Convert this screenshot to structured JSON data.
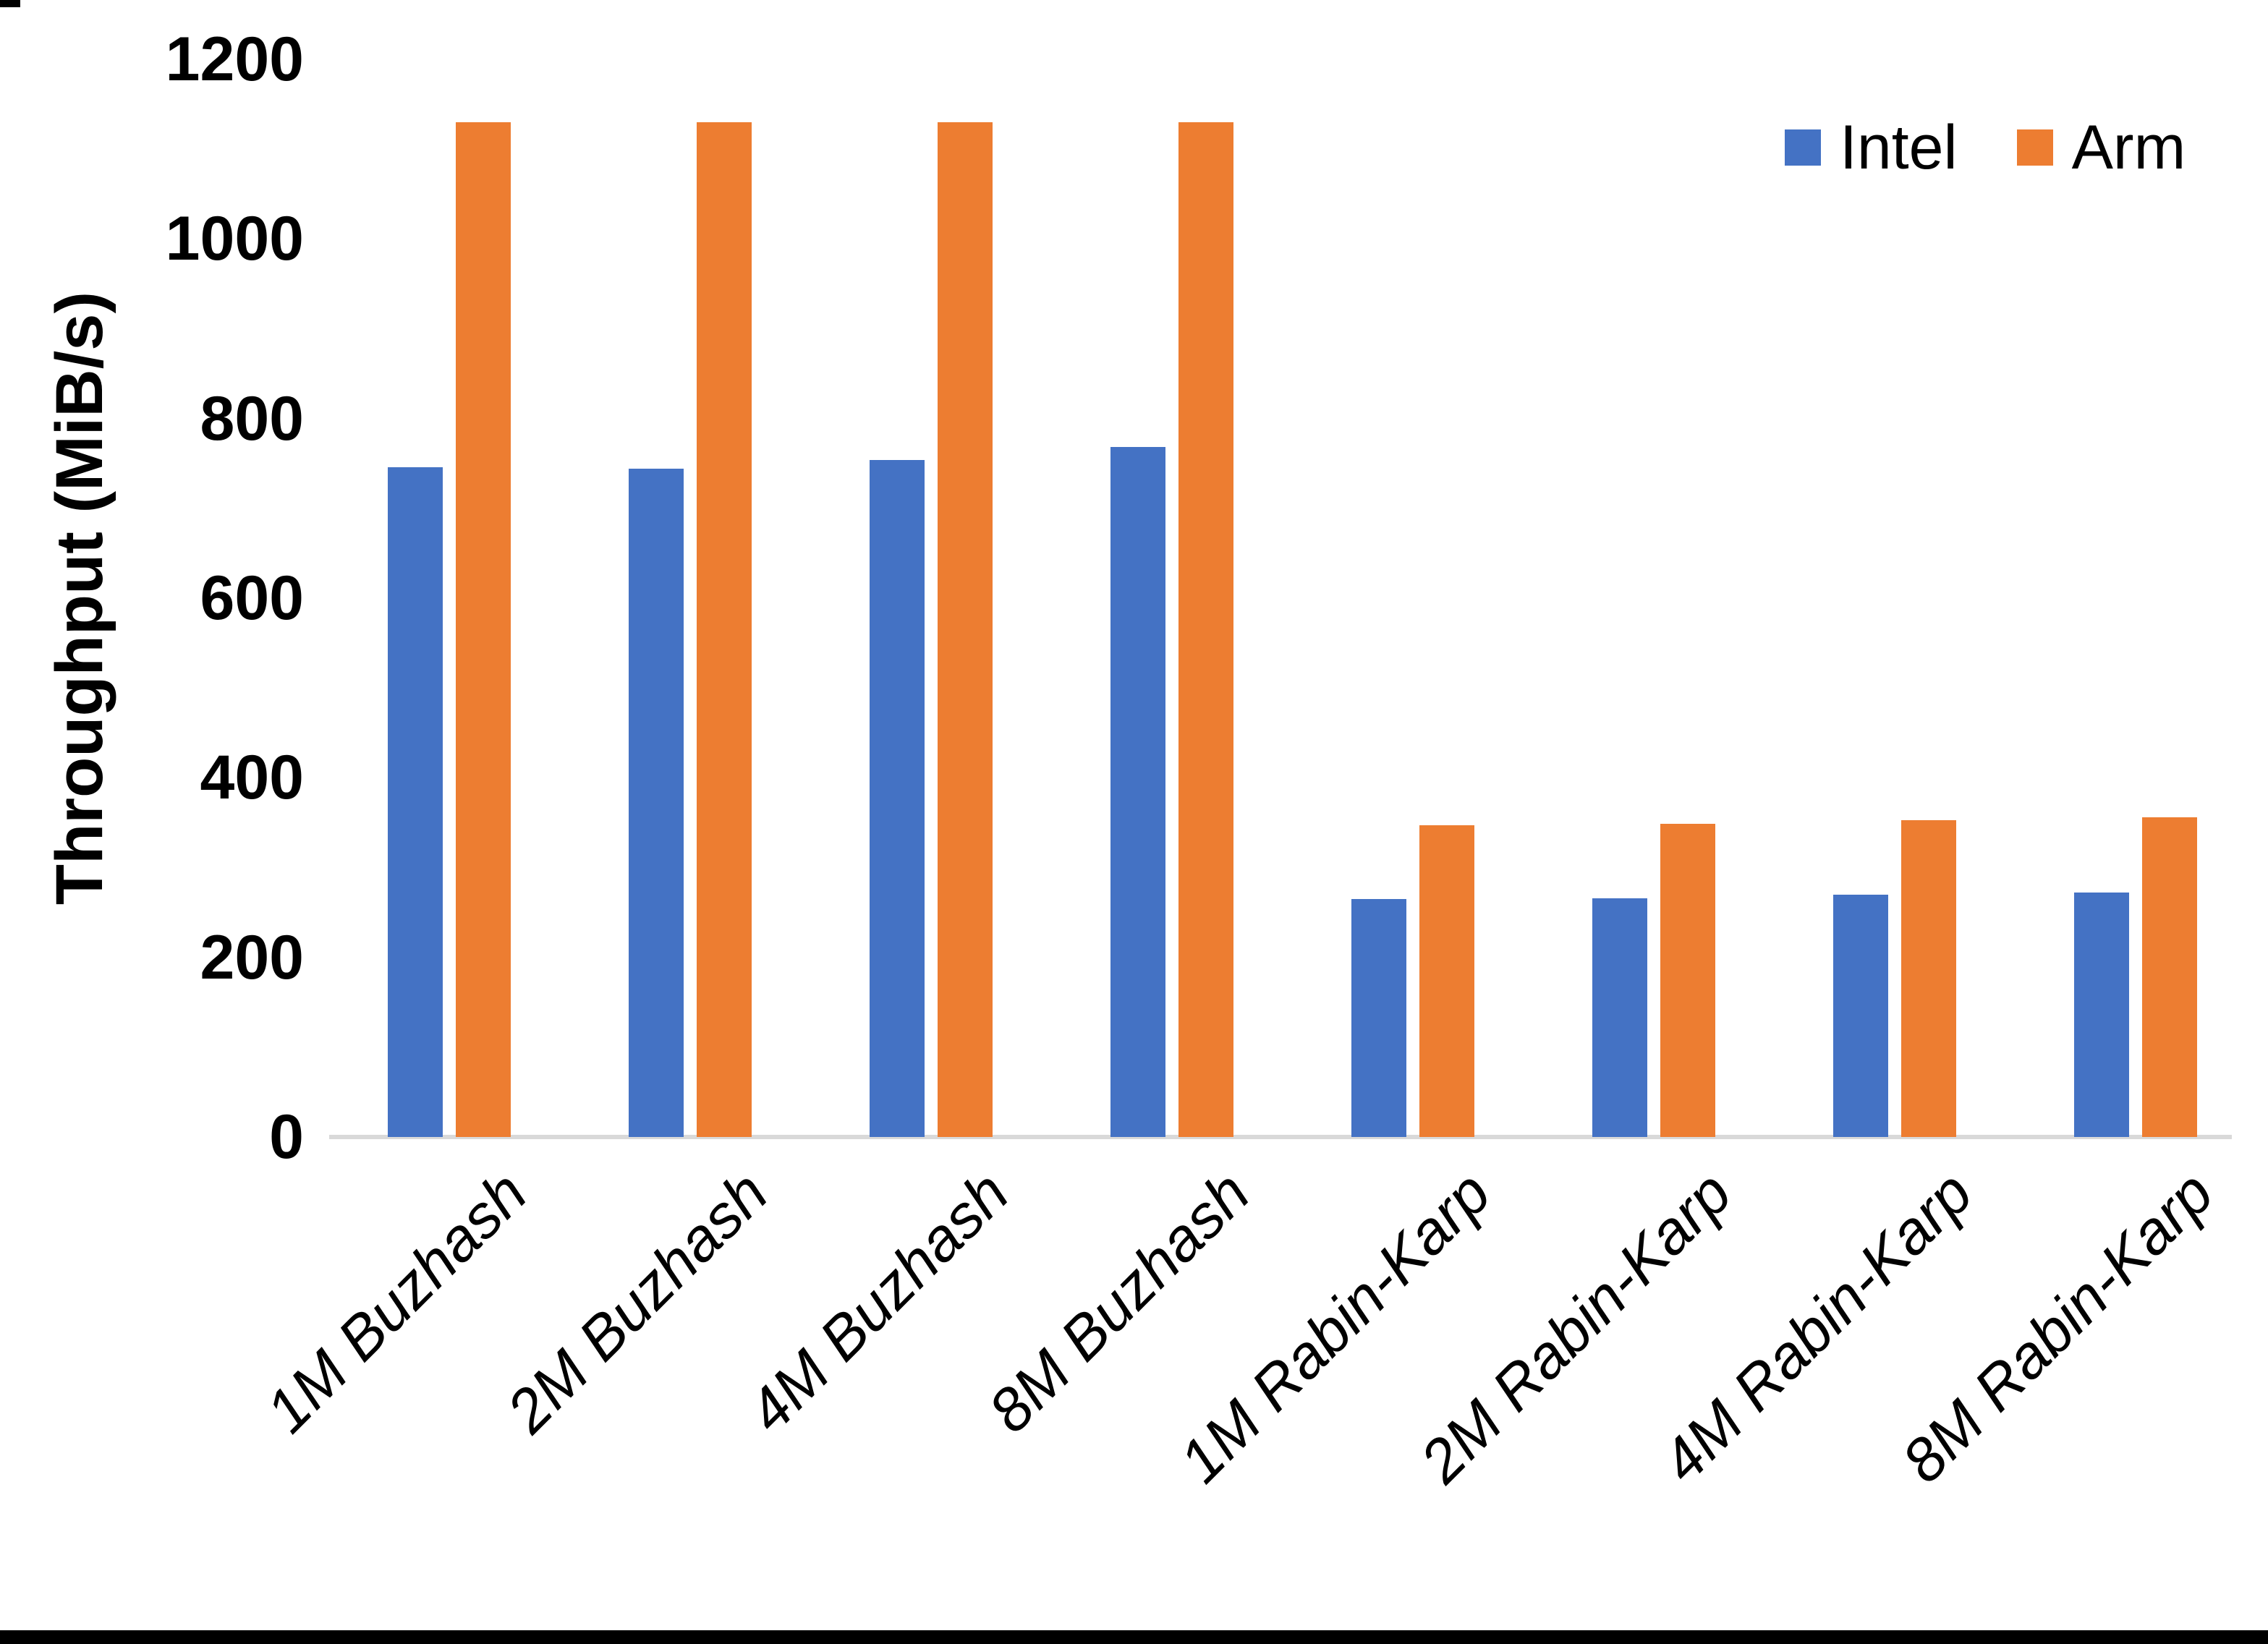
{
  "chart_data": {
    "type": "bar",
    "title": "",
    "ylabel": "Throughput (MiB/s)",
    "xlabel": "",
    "categories": [
      "1M Buzhash",
      "2M Buzhash",
      "4M Buzhash",
      "8M Buzhash",
      "1M Rabin-Karp",
      "2M Rabin-Karp",
      "4M Rabin-Karp",
      "8M Rabin-Karp"
    ],
    "series": [
      {
        "name": "Intel",
        "color": "#4472C4",
        "values": [
          746,
          744,
          754,
          768,
          265,
          266,
          270,
          272
        ]
      },
      {
        "name": "Arm",
        "color": "#ED7D31",
        "values": [
          1130,
          1130,
          1130,
          1130,
          347,
          349,
          353,
          356
        ]
      }
    ],
    "yticks": [
      0,
      200,
      400,
      600,
      800,
      1000,
      1200
    ],
    "ylim": [
      0,
      1200
    ],
    "grid": false,
    "legend_position": "top-right",
    "axis_line_color": "#D9D9D9",
    "tick_label_color": "#000000",
    "x_label_style": "italic, rotated 45deg"
  }
}
